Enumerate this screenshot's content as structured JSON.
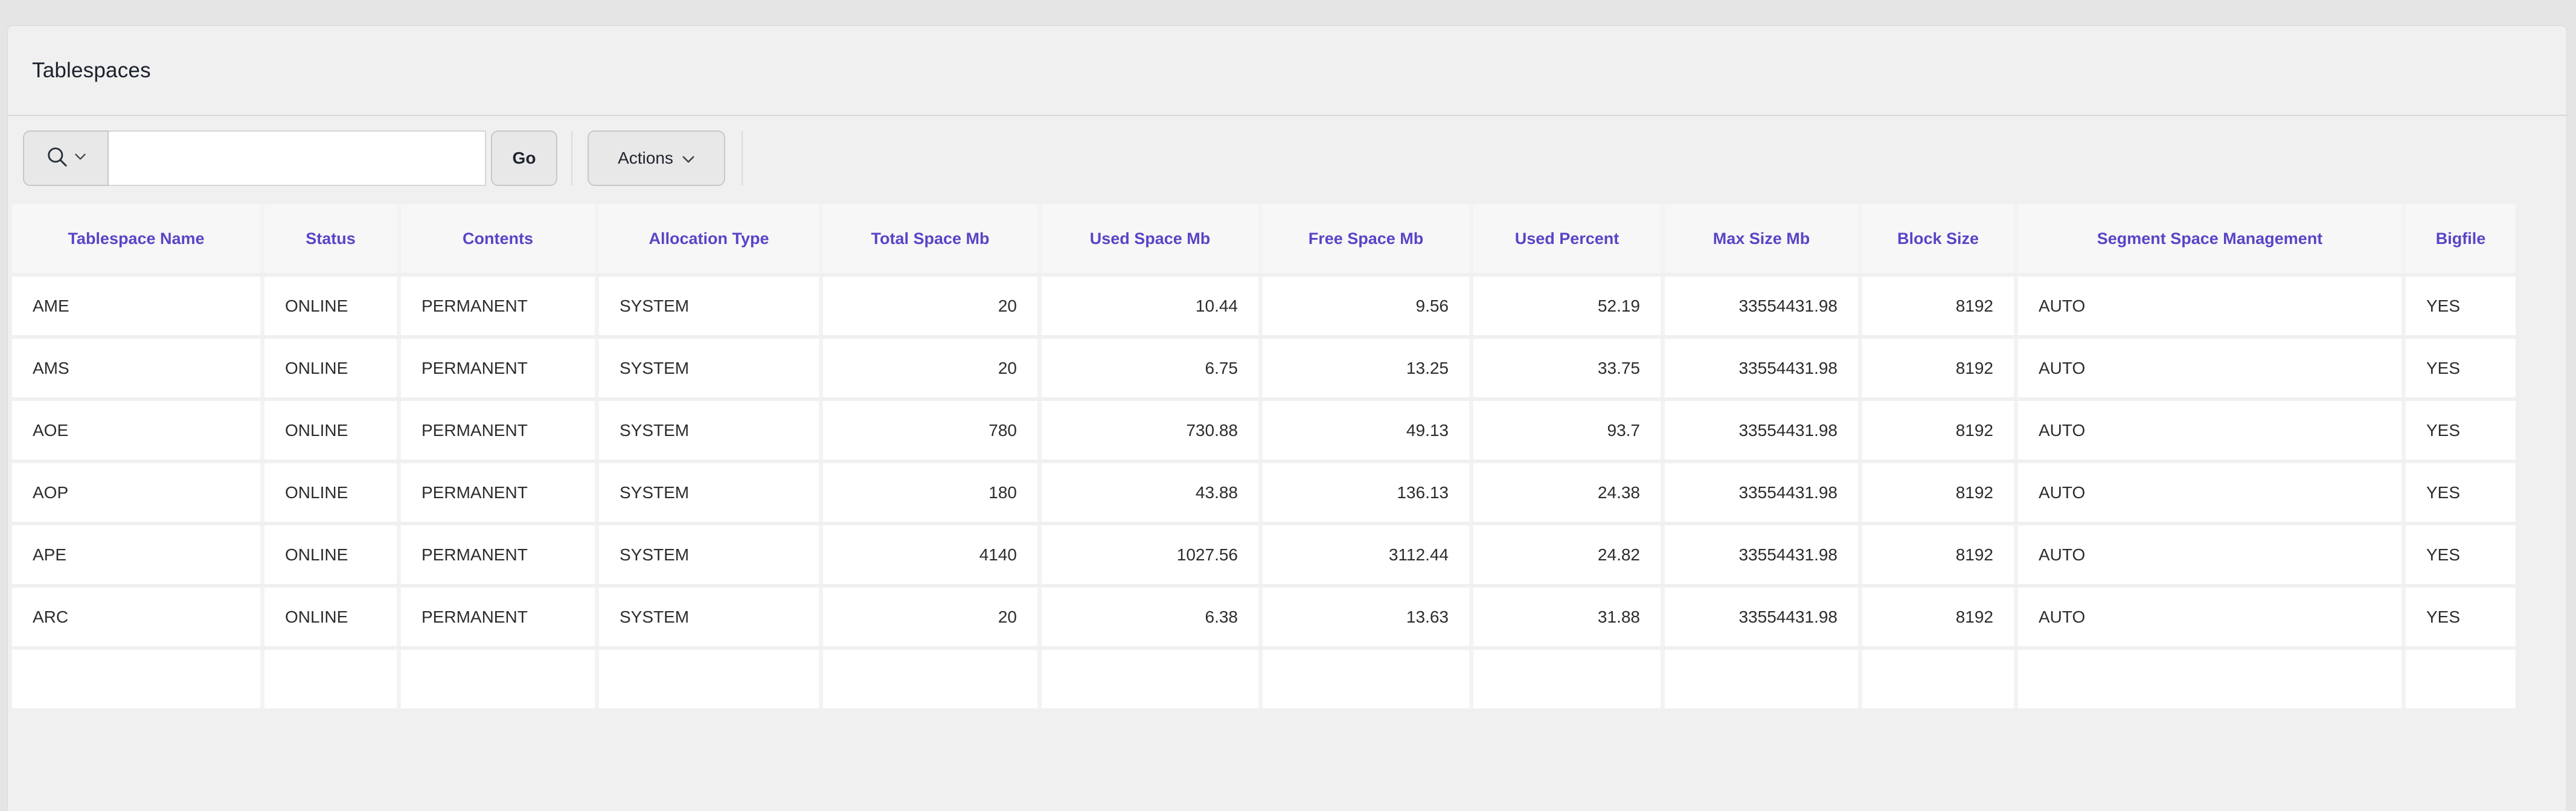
{
  "page": {
    "title": "Tablespaces"
  },
  "toolbar": {
    "search_input": {
      "value": ""
    },
    "go_button": {
      "label": "Go"
    },
    "actions_button": {
      "label": "Actions"
    }
  },
  "table": {
    "columns": [
      {
        "label": "Tablespace Name",
        "align": "left"
      },
      {
        "label": "Status",
        "align": "left"
      },
      {
        "label": "Contents",
        "align": "left"
      },
      {
        "label": "Allocation Type",
        "align": "left"
      },
      {
        "label": "Total Space Mb",
        "align": "right"
      },
      {
        "label": "Used Space Mb",
        "align": "right"
      },
      {
        "label": "Free Space Mb",
        "align": "right"
      },
      {
        "label": "Used Percent",
        "align": "right"
      },
      {
        "label": "Max Size Mb",
        "align": "right"
      },
      {
        "label": "Block Size",
        "align": "right"
      },
      {
        "label": "Segment Space Management",
        "align": "left"
      },
      {
        "label": "Bigfile",
        "align": "left"
      }
    ],
    "rows": [
      [
        "AME",
        "ONLINE",
        "PERMANENT",
        "SYSTEM",
        "20",
        "10.44",
        "9.56",
        "52.19",
        "33554431.98",
        "8192",
        "AUTO",
        "YES"
      ],
      [
        "AMS",
        "ONLINE",
        "PERMANENT",
        "SYSTEM",
        "20",
        "6.75",
        "13.25",
        "33.75",
        "33554431.98",
        "8192",
        "AUTO",
        "YES"
      ],
      [
        "AOE",
        "ONLINE",
        "PERMANENT",
        "SYSTEM",
        "780",
        "730.88",
        "49.13",
        "93.7",
        "33554431.98",
        "8192",
        "AUTO",
        "YES"
      ],
      [
        "AOP",
        "ONLINE",
        "PERMANENT",
        "SYSTEM",
        "180",
        "43.88",
        "136.13",
        "24.38",
        "33554431.98",
        "8192",
        "AUTO",
        "YES"
      ],
      [
        "APE",
        "ONLINE",
        "PERMANENT",
        "SYSTEM",
        "4140",
        "1027.56",
        "3112.44",
        "24.82",
        "33554431.98",
        "8192",
        "AUTO",
        "YES"
      ],
      [
        "ARC",
        "ONLINE",
        "PERMANENT",
        "SYSTEM",
        "20",
        "6.38",
        "13.63",
        "31.88",
        "33554431.98",
        "8192",
        "AUTO",
        "YES"
      ]
    ],
    "partial_next_row": true
  },
  "icons": {
    "search": "magnifier-icon",
    "search_dropdown": "chevron-down-icon",
    "actions_dropdown": "chevron-down-icon"
  },
  "colors": {
    "accent_header_text": "#5b43c6",
    "page_bg": "#e5e5e5",
    "panel_bg": "#f0f0f0",
    "header_cell_bg": "#f7f7f7",
    "cell_bg": "#ffffff",
    "title_text": "#1a202b"
  }
}
